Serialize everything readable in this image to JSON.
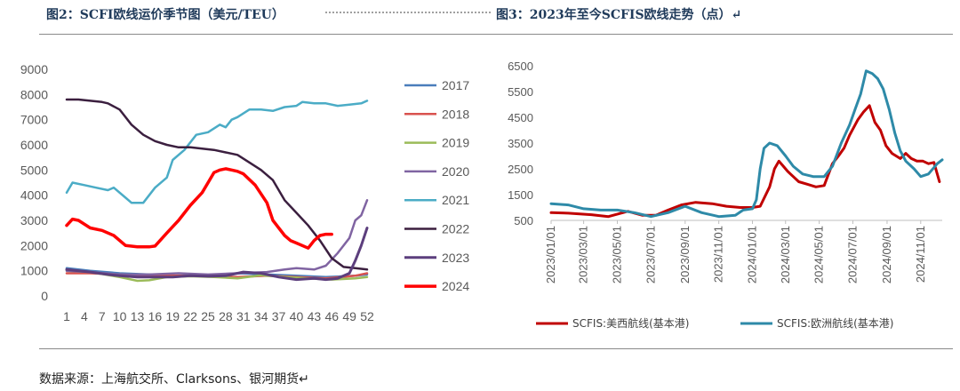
{
  "captions": {
    "left": "图2：SCFI欧线运价季节图（美元/TEU）",
    "right": "图3：2023年至今SCFIS欧线走势（点）↵"
  },
  "source_note": "数据来源：上海航交所、Clarksons、银河期货↵",
  "chart_data": [
    {
      "type": "line",
      "title": "",
      "xlabel": "",
      "ylabel": "",
      "ylim": [
        0,
        9000
      ],
      "yticks": [
        "0",
        "1000",
        "2000",
        "3000",
        "4000",
        "5000",
        "6000",
        "7000",
        "8000",
        "9000"
      ],
      "xlim": [
        1,
        52
      ],
      "xticks": [
        "1",
        "4",
        "7",
        "10",
        "13",
        "16",
        "19",
        "22",
        "25",
        "28",
        "31",
        "34",
        "37",
        "40",
        "43",
        "46",
        "49",
        "52"
      ],
      "legend_position": "right",
      "grid": false,
      "series": [
        {
          "name": "2017",
          "color": "#4a7ebb",
          "width": 2.5,
          "x": [
            1,
            5,
            10,
            15,
            20,
            25,
            30,
            35,
            40,
            45,
            50,
            52
          ],
          "y": [
            1100,
            1000,
            900,
            850,
            800,
            820,
            900,
            850,
            800,
            750,
            800,
            850
          ]
        },
        {
          "name": "2018",
          "color": "#d9534f",
          "width": 2.5,
          "x": [
            1,
            5,
            10,
            15,
            20,
            25,
            30,
            35,
            40,
            45,
            50,
            52
          ],
          "y": [
            900,
            900,
            850,
            800,
            800,
            780,
            750,
            800,
            750,
            700,
            800,
            900
          ]
        },
        {
          "name": "2019",
          "color": "#9bbb59",
          "width": 2.5,
          "x": [
            1,
            5,
            10,
            13,
            15,
            18,
            22,
            26,
            30,
            34,
            38,
            42,
            46,
            50,
            52
          ],
          "y": [
            1000,
            950,
            750,
            600,
            620,
            750,
            780,
            750,
            700,
            820,
            750,
            700,
            650,
            700,
            750
          ]
        },
        {
          "name": "2020",
          "color": "#8064a2",
          "width": 2.5,
          "x": [
            1,
            5,
            10,
            15,
            20,
            25,
            30,
            35,
            38,
            40,
            43,
            45,
            47,
            49,
            50,
            51,
            52
          ],
          "y": [
            1000,
            950,
            850,
            850,
            900,
            850,
            900,
            950,
            1050,
            1100,
            1050,
            1200,
            1700,
            2300,
            3000,
            3200,
            3800
          ]
        },
        {
          "name": "2021",
          "color": "#4bacc6",
          "width": 2.5,
          "x": [
            1,
            2,
            4,
            6,
            8,
            9,
            11,
            12,
            13,
            14,
            16,
            18,
            19,
            21,
            23,
            25,
            27,
            28,
            29,
            30,
            32,
            34,
            36,
            38,
            40,
            41,
            43,
            45,
            47,
            49,
            51,
            52
          ],
          "y": [
            4100,
            4500,
            4400,
            4300,
            4200,
            4300,
            3900,
            3700,
            3700,
            3700,
            4300,
            4700,
            5400,
            5800,
            6400,
            6500,
            6800,
            6700,
            7000,
            7100,
            7400,
            7400,
            7350,
            7500,
            7550,
            7700,
            7650,
            7650,
            7550,
            7600,
            7650,
            7750
          ]
        },
        {
          "name": "2022",
          "color": "#3b1f3f",
          "width": 2.5,
          "x": [
            1,
            3,
            5,
            7,
            8,
            10,
            12,
            14,
            16,
            18,
            20,
            22,
            24,
            26,
            28,
            30,
            32,
            34,
            36,
            38,
            40,
            42,
            44,
            46,
            48,
            50,
            52
          ],
          "y": [
            7800,
            7800,
            7750,
            7700,
            7650,
            7400,
            6800,
            6400,
            6150,
            6000,
            5900,
            5900,
            5850,
            5800,
            5700,
            5600,
            5300,
            5000,
            4600,
            3800,
            3300,
            2800,
            2200,
            1500,
            1150,
            1100,
            1050
          ]
        },
        {
          "name": "2023",
          "color": "#5c3e7d",
          "width": 3,
          "x": [
            1,
            3,
            5,
            8,
            10,
            13,
            16,
            19,
            22,
            25,
            28,
            31,
            34,
            37,
            40,
            43,
            45,
            47,
            49,
            50,
            51,
            52
          ],
          "y": [
            1050,
            1000,
            950,
            850,
            800,
            750,
            750,
            750,
            800,
            780,
            800,
            950,
            900,
            750,
            650,
            700,
            650,
            700,
            900,
            1400,
            2000,
            2700
          ]
        },
        {
          "name": "2024",
          "color": "#ff0000",
          "width": 3.5,
          "x": [
            1,
            2,
            3,
            5,
            7,
            9,
            11,
            13,
            15,
            16,
            18,
            20,
            22,
            24,
            25,
            26,
            27,
            28,
            29,
            30,
            31,
            33,
            35,
            36,
            37,
            38,
            39,
            40,
            42,
            43,
            44,
            45,
            46
          ],
          "y": [
            2800,
            3050,
            3000,
            2700,
            2600,
            2400,
            2000,
            1950,
            1950,
            1980,
            2500,
            3000,
            3600,
            4100,
            4500,
            4900,
            5000,
            5050,
            5000,
            4950,
            4850,
            4400,
            3700,
            3000,
            2700,
            2400,
            2200,
            2100,
            1900,
            2200,
            2400,
            2450,
            2450
          ]
        }
      ]
    },
    {
      "type": "line",
      "title": "",
      "xlabel": "",
      "ylabel": "",
      "ylim": [
        500,
        6500
      ],
      "yticks": [
        "500",
        "1500",
        "2500",
        "3500",
        "4500",
        "5500",
        "6500"
      ],
      "xlim": [
        "2023/01/01",
        "2024/12/10"
      ],
      "xticks": [
        "2023/01/01",
        "2023/03/01",
        "2023/05/01",
        "2023/07/01",
        "2023/09/01",
        "2023/11/01",
        "2024/01/01",
        "2024/03/01",
        "2024/05/01",
        "2024/07/01",
        "2024/09/01",
        "2024/11/01"
      ],
      "legend_position": "bottom",
      "grid": false,
      "series": [
        {
          "name": "SCFIS:美西航线(基本港)",
          "color": "#c00000",
          "width": 3,
          "x": [
            "2023/01/01",
            "2023/02/01",
            "2023/03/15",
            "2023/04/15",
            "2023/05/20",
            "2023/06/15",
            "2023/07/10",
            "2023/08/01",
            "2023/08/25",
            "2023/09/20",
            "2023/10/20",
            "2023/11/15",
            "2023/12/10",
            "2024/01/01",
            "2024/01/15",
            "2024/02/01",
            "2024/02/10",
            "2024/02/18",
            "2024/02/26",
            "2024/03/05",
            "2024/03/15",
            "2024/03/25",
            "2024/04/10",
            "2024/04/25",
            "2024/05/10",
            "2024/05/25",
            "2024/06/05",
            "2024/06/15",
            "2024/06/25",
            "2024/07/10",
            "2024/07/20",
            "2024/07/31",
            "2024/08/10",
            "2024/08/20",
            "2024/08/30",
            "2024/09/10",
            "2024/09/25",
            "2024/10/05",
            "2024/10/15",
            "2024/10/25",
            "2024/11/05",
            "2024/11/15",
            "2024/11/25",
            "2024/12/05"
          ],
          "y": [
            800,
            780,
            720,
            650,
            850,
            700,
            700,
            900,
            1100,
            1200,
            1150,
            1050,
            1000,
            1000,
            1050,
            1800,
            2500,
            2800,
            2600,
            2400,
            2200,
            2000,
            1900,
            1800,
            1850,
            2700,
            3000,
            3300,
            3800,
            4400,
            4700,
            4950,
            4300,
            4000,
            3400,
            3100,
            2900,
            3100,
            2900,
            2800,
            2800,
            2700,
            2750,
            2000
          ]
        },
        {
          "name": "SCFIS:欧洲航线(基本港)",
          "color": "#2e8aa8",
          "width": 3,
          "x": [
            "2023/01/01",
            "2023/02/01",
            "2023/03/01",
            "2023/04/01",
            "2023/05/01",
            "2023/06/01",
            "2023/07/01",
            "2023/08/01",
            "2023/09/01",
            "2023/10/01",
            "2023/11/01",
            "2023/12/01",
            "2023/12/15",
            "2024/01/01",
            "2024/01/08",
            "2024/01/15",
            "2024/01/22",
            "2024/02/01",
            "2024/02/15",
            "2024/03/01",
            "2024/03/15",
            "2024/04/01",
            "2024/04/20",
            "2024/05/10",
            "2024/05/25",
            "2024/06/10",
            "2024/06/25",
            "2024/07/05",
            "2024/07/15",
            "2024/07/25",
            "2024/08/05",
            "2024/08/15",
            "2024/08/25",
            "2024/09/05",
            "2024/09/15",
            "2024/09/25",
            "2024/10/05",
            "2024/10/20",
            "2024/11/01",
            "2024/11/15",
            "2024/12/01",
            "2024/12/10"
          ],
          "y": [
            1150,
            1100,
            950,
            900,
            900,
            800,
            650,
            800,
            1050,
            800,
            650,
            700,
            900,
            950,
            1300,
            2500,
            3300,
            3500,
            3400,
            3000,
            2600,
            2300,
            2200,
            2200,
            2600,
            3500,
            4200,
            4800,
            5400,
            6300,
            6200,
            6000,
            5600,
            4800,
            3900,
            3200,
            2800,
            2500,
            2200,
            2300,
            2700,
            2850
          ]
        }
      ]
    }
  ]
}
